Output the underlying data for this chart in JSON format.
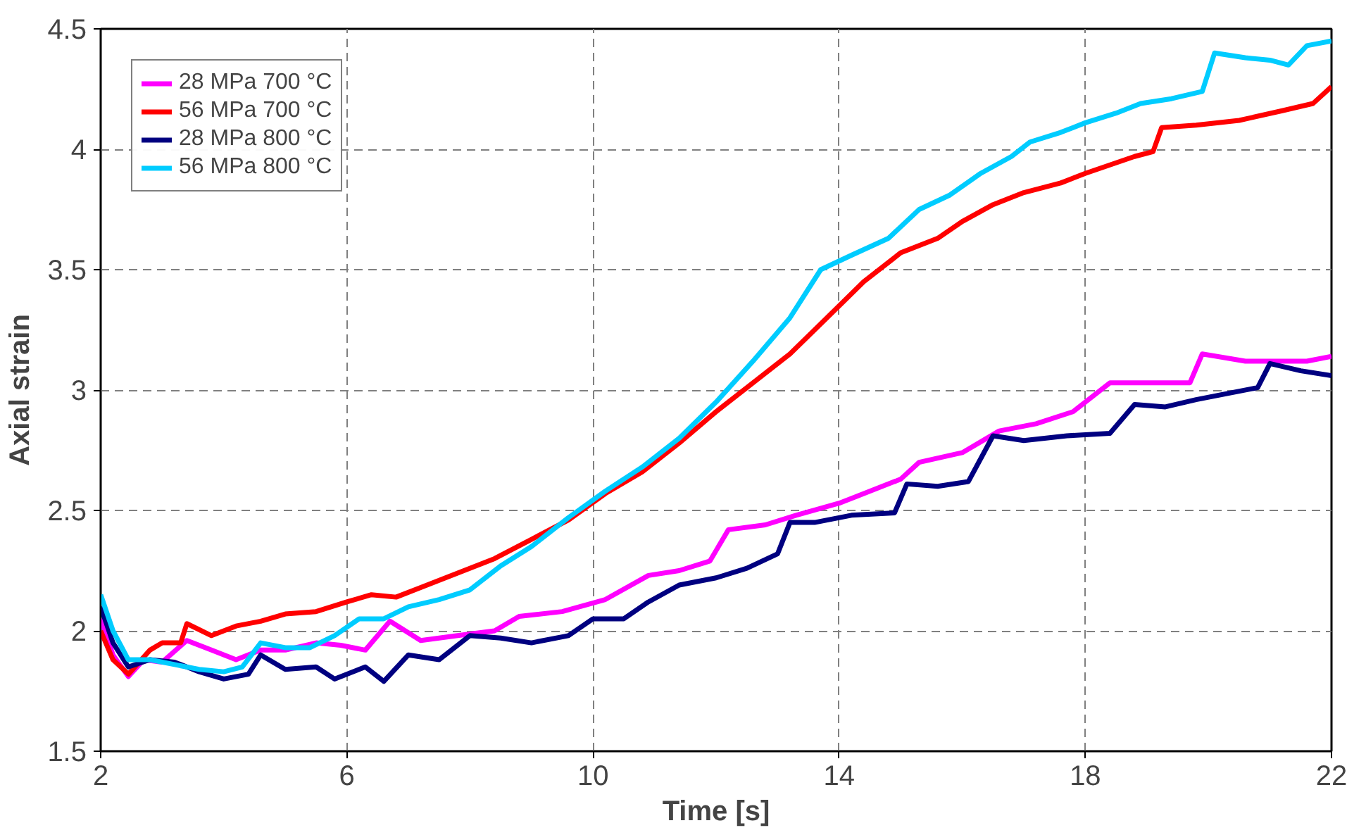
{
  "chart_data": {
    "type": "line",
    "xlabel": "Time [s]",
    "ylabel": "Axial strain",
    "xlim": [
      2,
      22
    ],
    "xticks": [
      2,
      6,
      10,
      14,
      18,
      22
    ],
    "ylim": [
      1.5,
      4.5
    ],
    "yticks": [
      1.5,
      2,
      2.5,
      3,
      3.5,
      4,
      4.5
    ],
    "grid": true,
    "legend": "top left",
    "marker": "none",
    "line_style": "solid",
    "series": [
      {
        "name": "28 MPa 700 °C",
        "color": "#ff00ff",
        "x": [
          2,
          2.2,
          2.45,
          2.7,
          3.0,
          3.4,
          3.8,
          4.2,
          4.6,
          5.0,
          5.5,
          5.9,
          6.3,
          6.7,
          7.2,
          7.8,
          8.4,
          8.8,
          9.5,
          10.2,
          10.9,
          11.4,
          11.9,
          12.2,
          12.8,
          13.3,
          14.0,
          14.3,
          15.0,
          15.3,
          16.0,
          16.6,
          17.2,
          17.8,
          18.4,
          19.0,
          19.7,
          19.9,
          20.6,
          21.2,
          21.6,
          22
        ],
        "values": [
          2.05,
          1.9,
          1.81,
          1.88,
          1.87,
          1.96,
          1.92,
          1.88,
          1.92,
          1.92,
          1.95,
          1.94,
          1.92,
          2.04,
          1.96,
          1.98,
          2.0,
          2.06,
          2.08,
          2.13,
          2.23,
          2.25,
          2.29,
          2.42,
          2.44,
          2.48,
          2.53,
          2.56,
          2.63,
          2.7,
          2.74,
          2.83,
          2.86,
          2.91,
          3.03,
          3.03,
          3.03,
          3.15,
          3.12,
          3.12,
          3.12,
          3.14
        ]
      },
      {
        "name": "56 MPa 700 °C",
        "color": "#ff0000",
        "x": [
          2,
          2.2,
          2.45,
          2.8,
          3.0,
          3.3,
          3.4,
          3.8,
          4.2,
          4.6,
          5.0,
          5.5,
          6.0,
          6.4,
          6.8,
          7.2,
          7.8,
          8.4,
          9.0,
          9.6,
          10.2,
          10.8,
          11.4,
          12.0,
          12.6,
          13.2,
          13.8,
          14.4,
          15.0,
          15.6,
          16.0,
          16.5,
          17.0,
          17.6,
          18.0,
          18.8,
          19.1,
          19.24,
          19.8,
          20.5,
          21.2,
          21.7,
          22
        ],
        "values": [
          2.0,
          1.88,
          1.82,
          1.92,
          1.95,
          1.95,
          2.03,
          1.98,
          2.02,
          2.04,
          2.07,
          2.08,
          2.12,
          2.15,
          2.14,
          2.18,
          2.24,
          2.3,
          2.38,
          2.46,
          2.57,
          2.66,
          2.78,
          2.91,
          3.03,
          3.15,
          3.3,
          3.45,
          3.57,
          3.63,
          3.7,
          3.77,
          3.82,
          3.86,
          3.9,
          3.97,
          3.99,
          4.09,
          4.1,
          4.12,
          4.16,
          4.19,
          4.26
        ]
      },
      {
        "name": "28 MPa 800 °C",
        "color": "#000080",
        "x": [
          2,
          2.2,
          2.45,
          2.8,
          3.2,
          3.6,
          4.0,
          4.4,
          4.6,
          5.0,
          5.5,
          5.8,
          6.3,
          6.6,
          7.0,
          7.5,
          8.0,
          8.5,
          9.0,
          9.6,
          10.0,
          10.5,
          10.9,
          11.4,
          12.0,
          12.5,
          13.0,
          13.2,
          13.6,
          14.2,
          14.9,
          15.1,
          15.6,
          16.1,
          16.5,
          17.0,
          17.7,
          18.4,
          18.8,
          19.3,
          19.8,
          20.4,
          20.8,
          21.0,
          21.5,
          22
        ],
        "values": [
          2.1,
          1.95,
          1.85,
          1.88,
          1.87,
          1.83,
          1.8,
          1.82,
          1.9,
          1.84,
          1.85,
          1.8,
          1.85,
          1.79,
          1.9,
          1.88,
          1.98,
          1.97,
          1.95,
          1.98,
          2.05,
          2.05,
          2.12,
          2.19,
          2.22,
          2.26,
          2.32,
          2.45,
          2.45,
          2.48,
          2.49,
          2.61,
          2.6,
          2.62,
          2.81,
          2.79,
          2.81,
          2.82,
          2.94,
          2.93,
          2.96,
          2.99,
          3.01,
          3.11,
          3.08,
          3.06
        ]
      },
      {
        "name": "56 MPa 800 °C",
        "color": "#00ccff",
        "x": [
          2,
          2.2,
          2.45,
          2.8,
          3.2,
          3.6,
          4.0,
          4.3,
          4.6,
          5.0,
          5.4,
          5.8,
          6.2,
          6.6,
          7.0,
          7.5,
          8.0,
          8.5,
          9.0,
          9.6,
          10.2,
          10.8,
          11.4,
          12.0,
          12.6,
          13.2,
          13.7,
          14.2,
          14.8,
          15.3,
          15.8,
          16.3,
          16.8,
          17.1,
          17.6,
          18.0,
          18.5,
          18.9,
          19.4,
          19.9,
          20.1,
          20.6,
          21.0,
          21.3,
          21.6,
          22
        ],
        "values": [
          2.15,
          2.0,
          1.88,
          1.88,
          1.86,
          1.84,
          1.83,
          1.85,
          1.95,
          1.93,
          1.93,
          1.98,
          2.05,
          2.05,
          2.1,
          2.13,
          2.17,
          2.27,
          2.35,
          2.47,
          2.58,
          2.68,
          2.8,
          2.95,
          3.12,
          3.3,
          3.5,
          3.56,
          3.63,
          3.75,
          3.81,
          3.9,
          3.97,
          4.03,
          4.07,
          4.11,
          4.15,
          4.19,
          4.21,
          4.24,
          4.4,
          4.38,
          4.37,
          4.35,
          4.43,
          4.45
        ]
      }
    ]
  }
}
